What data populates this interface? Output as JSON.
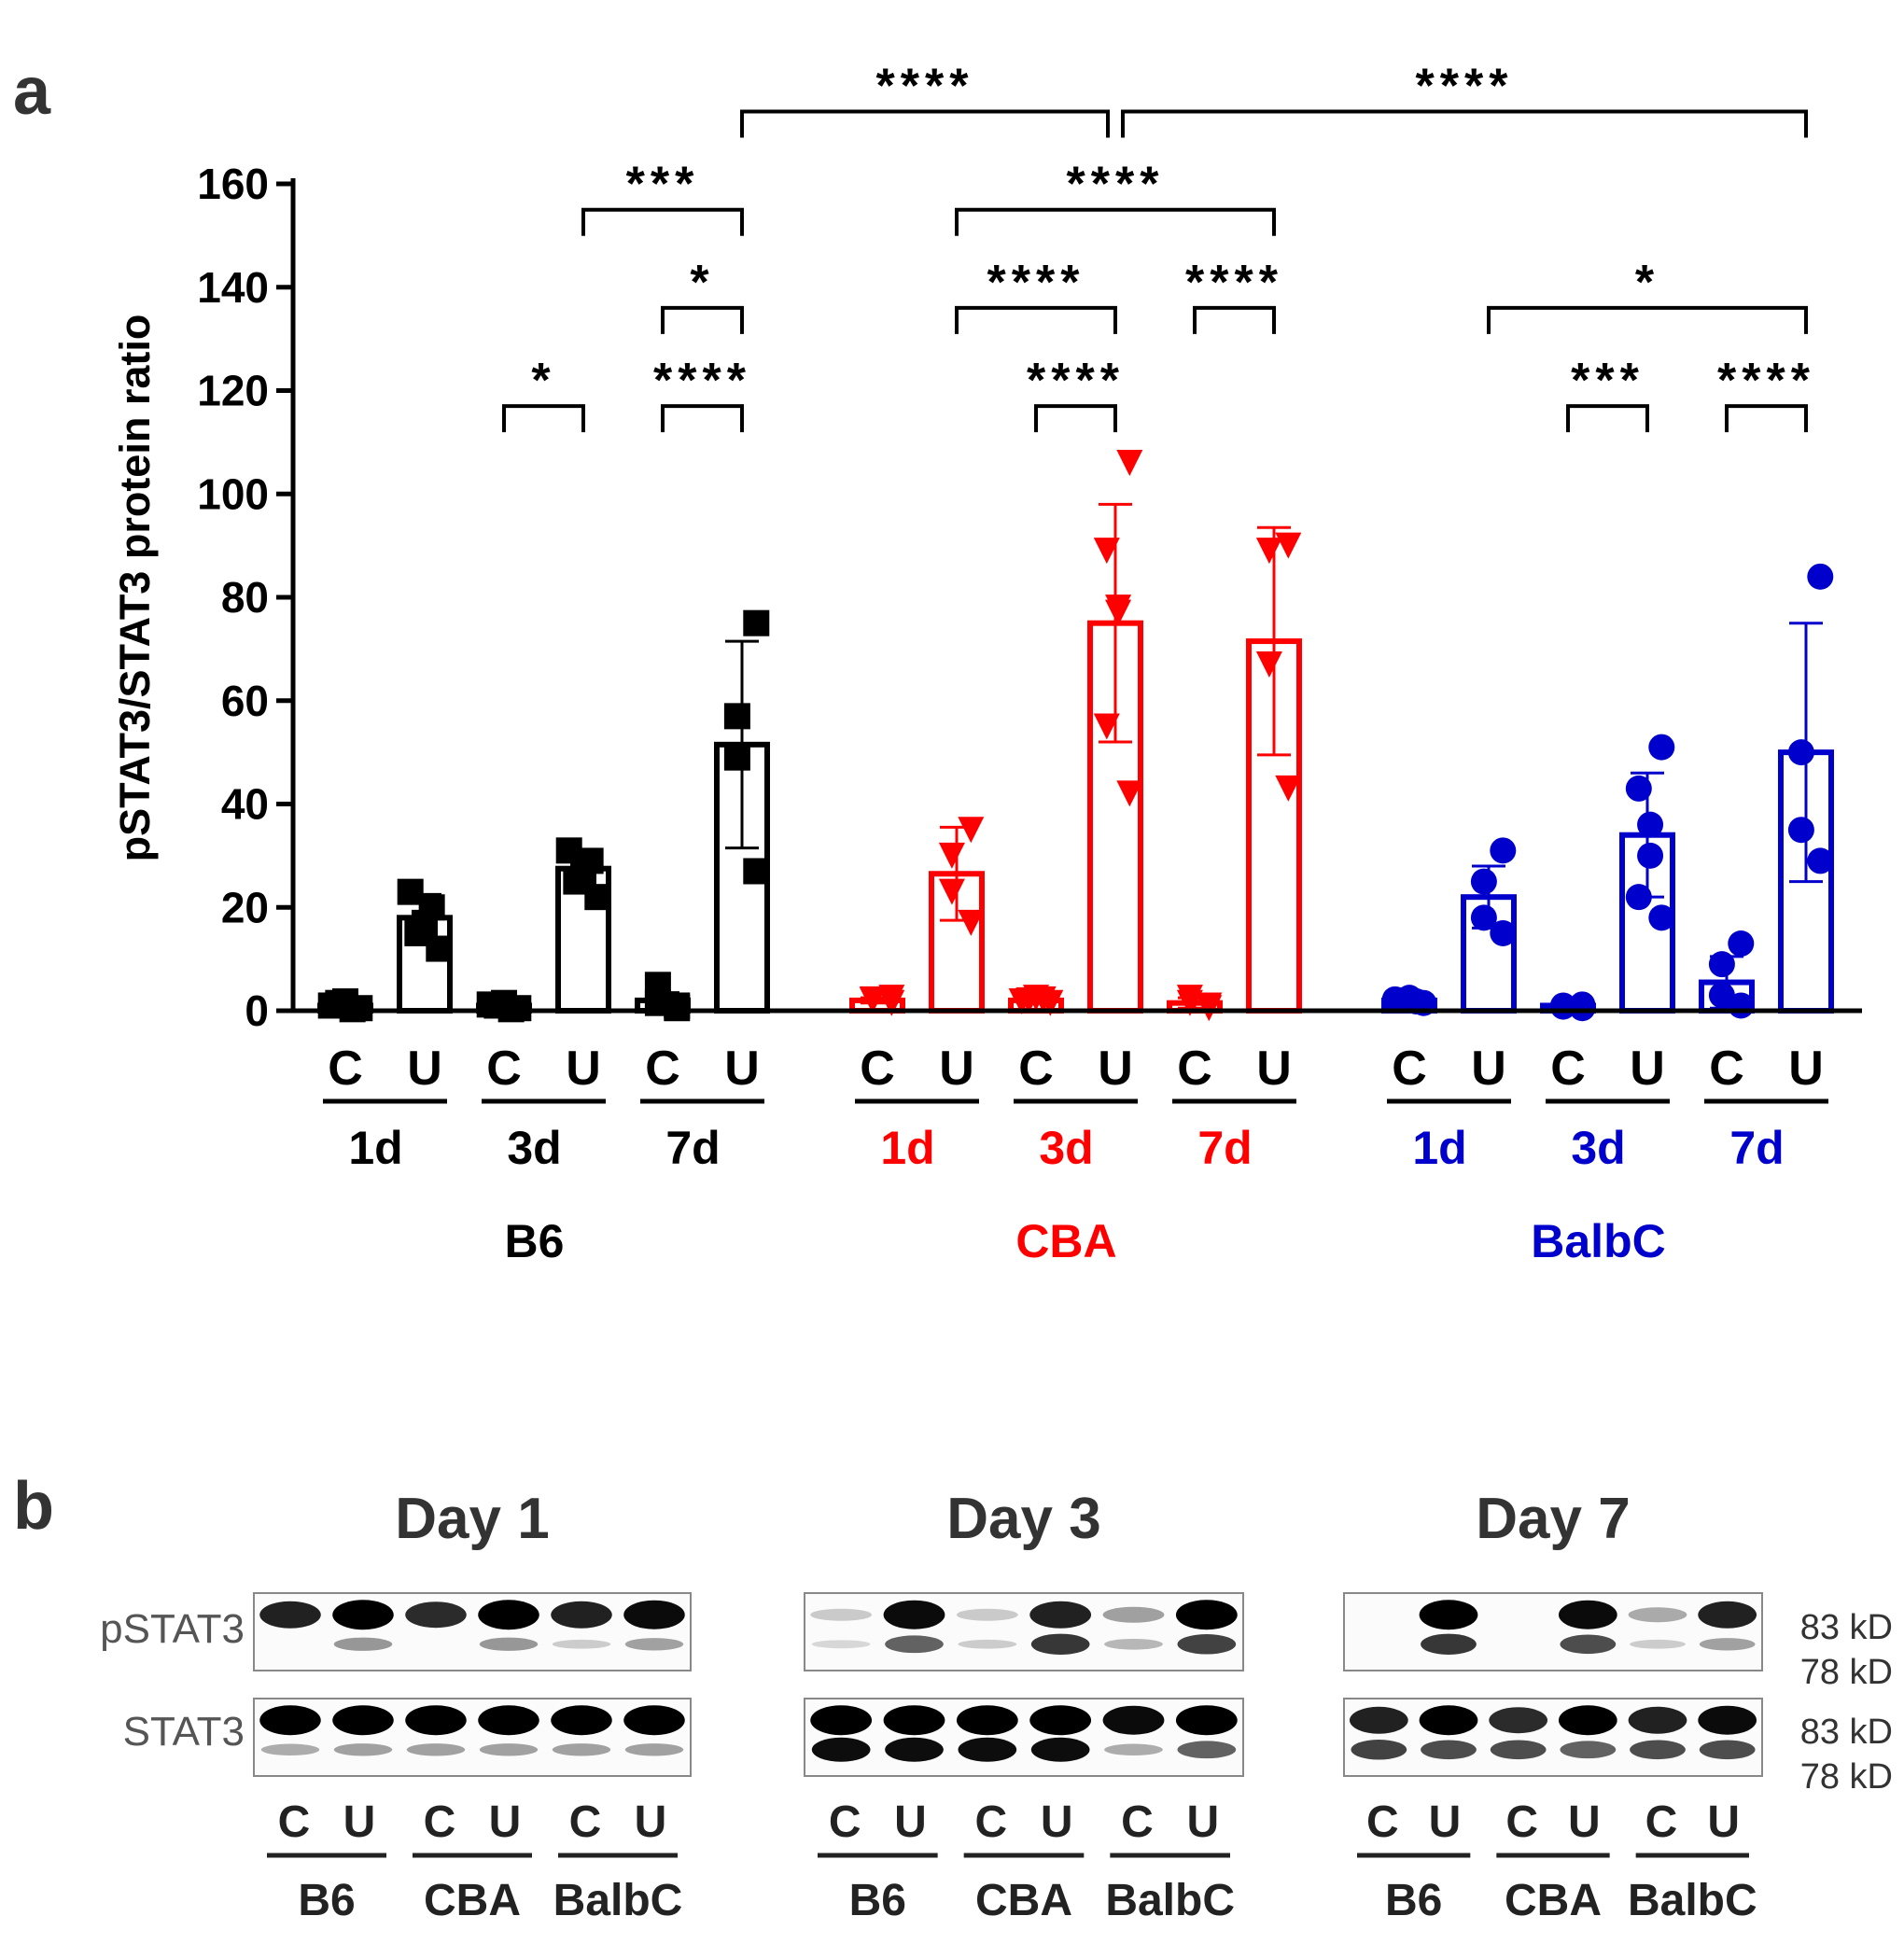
{
  "panel_a_label": "a",
  "panel_b_label": "b",
  "chart_data": {
    "type": "bar",
    "title": "",
    "xlabel": "",
    "ylabel": "pSTAT3/STAT3 protein ratio",
    "ylim": [
      0,
      160
    ],
    "yticks": [
      0,
      20,
      40,
      60,
      80,
      100,
      120,
      140,
      160
    ],
    "grid": false,
    "strains": [
      {
        "name": "B6",
        "color": "#000000",
        "marker": "square",
        "days": [
          {
            "label": "1d",
            "C": {
              "label": "C",
              "mean": 1,
              "sd": 0.8,
              "points": [
                0.5,
                1.5,
                1.8,
                0.3,
                1.0
              ]
            },
            "U": {
              "label": "U",
              "mean": 18,
              "sd": 4.5,
              "points": [
                12,
                15,
                17,
                20,
                23
              ]
            }
          },
          {
            "label": "3d",
            "C": {
              "label": "C",
              "mean": 1,
              "sd": 0.6,
              "points": [
                0.5,
                1.0,
                1.5,
                0.3,
                1.2
              ]
            },
            "U": {
              "label": "U",
              "mean": 27.5,
              "sd": 3.5,
              "points": [
                22,
                25,
                27,
                29,
                31
              ]
            }
          },
          {
            "label": "7d",
            "C": {
              "label": "C",
              "mean": 2,
              "sd": 1.5,
              "points": [
                0.5,
                1.5,
                5.0,
                1.0
              ]
            },
            "U": {
              "label": "U",
              "mean": 51.5,
              "sd": 20,
              "points": [
                27,
                49,
                57,
                75
              ]
            }
          }
        ]
      },
      {
        "name": "CBA",
        "color": "#ff0000",
        "marker": "triangle",
        "days": [
          {
            "label": "1d",
            "C": {
              "label": "C",
              "mean": 2,
              "sd": 0.5,
              "points": [
                1.5,
                2.0,
                2.2,
                2.5
              ]
            },
            "U": {
              "label": "U",
              "mean": 26.5,
              "sd": 9,
              "points": [
                17,
                23,
                30,
                35
              ]
            }
          },
          {
            "label": "3d",
            "C": {
              "label": "C",
              "mean": 2,
              "sd": 0.5,
              "points": [
                1.5,
                2.0,
                2.5,
                2.2,
                1.8
              ]
            },
            "U": {
              "label": "U",
              "mean": 75,
              "sd": 23,
              "points": [
                42,
                55,
                77,
                78,
                89,
                106
              ]
            }
          },
          {
            "label": "7d",
            "C": {
              "label": "C",
              "mean": 1.5,
              "sd": 1.0,
              "points": [
                0.5,
                1.5,
                2.5,
                1.0
              ]
            },
            "U": {
              "label": "U",
              "mean": 71.5,
              "sd": 22,
              "points": [
                43,
                67,
                89,
                90
              ]
            }
          }
        ]
      },
      {
        "name": "BalbC",
        "color": "#0000cc",
        "marker": "circle",
        "days": [
          {
            "label": "1d",
            "C": {
              "label": "C",
              "mean": 2,
              "sd": 0.6,
              "points": [
                1.5,
                2.0,
                2.5,
                1.8,
                2.2
              ]
            },
            "U": {
              "label": "U",
              "mean": 22,
              "sd": 6,
              "points": [
                15,
                18,
                25,
                31
              ]
            }
          },
          {
            "label": "3d",
            "C": {
              "label": "C",
              "mean": 1,
              "sd": 0.3,
              "points": [
                0.5,
                0.8,
                1.0,
                1.2
              ]
            },
            "U": {
              "label": "U",
              "mean": 34,
              "sd": 12,
              "points": [
                18,
                22,
                30,
                36,
                43,
                51
              ]
            }
          },
          {
            "label": "7d",
            "C": {
              "label": "C",
              "mean": 5.5,
              "sd": 5,
              "points": [
                1,
                3,
                9,
                13
              ]
            },
            "U": {
              "label": "U",
              "mean": 50,
              "sd": 25,
              "points": [
                29,
                35,
                50,
                84
              ]
            }
          }
        ]
      }
    ],
    "significance": [
      {
        "from": [
          0,
          2,
          "U"
        ],
        "to": [
          1,
          1,
          "U"
        ],
        "label": "****",
        "y": 174
      },
      {
        "from": [
          1,
          1,
          "U"
        ],
        "to": [
          2,
          2,
          "U"
        ],
        "label": "****",
        "y": 174
      },
      {
        "from": [
          0,
          1,
          "U"
        ],
        "to": [
          0,
          2,
          "U"
        ],
        "label": "***",
        "y": 155
      },
      {
        "from": [
          1,
          0,
          "U"
        ],
        "to": [
          1,
          2,
          "U"
        ],
        "label": "****",
        "y": 155
      },
      {
        "from": [
          0,
          2,
          "C"
        ],
        "to": [
          0,
          2,
          "U"
        ],
        "label": "*",
        "y": 136
      },
      {
        "from": [
          1,
          0,
          "U"
        ],
        "to": [
          1,
          1,
          "U"
        ],
        "label": "****",
        "y": 136
      },
      {
        "from": [
          1,
          2,
          "C"
        ],
        "to": [
          1,
          2,
          "U"
        ],
        "label": "****",
        "y": 136
      },
      {
        "from": [
          2,
          0,
          "U"
        ],
        "to": [
          2,
          2,
          "U"
        ],
        "label": "*",
        "y": 136
      },
      {
        "from": [
          0,
          1,
          "C"
        ],
        "to": [
          0,
          1,
          "U"
        ],
        "label": "*",
        "y": 117
      },
      {
        "from": [
          0,
          2,
          "C"
        ],
        "to": [
          0,
          2,
          "U"
        ],
        "label": "****",
        "y": 117
      },
      {
        "from": [
          1,
          1,
          "C"
        ],
        "to": [
          1,
          1,
          "U"
        ],
        "label": "****",
        "y": 117
      },
      {
        "from": [
          2,
          1,
          "C"
        ],
        "to": [
          2,
          1,
          "U"
        ],
        "label": "***",
        "y": 117
      },
      {
        "from": [
          2,
          2,
          "C"
        ],
        "to": [
          2,
          2,
          "U"
        ],
        "label": "****",
        "y": 117
      }
    ]
  },
  "western_blot": {
    "panels": [
      {
        "title": "Day 1",
        "lanes": [
          "C",
          "U",
          "C",
          "U",
          "C",
          "U"
        ],
        "groups": [
          "B6",
          "CBA",
          "BalbC"
        ],
        "pstat3_top": [
          0.85,
          1.0,
          0.8,
          1.0,
          0.85,
          0.95
        ],
        "pstat3_bottom": [
          0.0,
          0.35,
          0.0,
          0.35,
          0.1,
          0.3
        ],
        "stat3_top": [
          1.0,
          1.0,
          1.0,
          1.0,
          1.0,
          1.0
        ],
        "stat3_bottom": [
          0.25,
          0.3,
          0.3,
          0.3,
          0.3,
          0.3
        ]
      },
      {
        "title": "Day 3",
        "lanes": [
          "C",
          "U",
          "C",
          "U",
          "C",
          "U"
        ],
        "groups": [
          "B6",
          "CBA",
          "BalbC"
        ],
        "pstat3_top": [
          0.05,
          0.95,
          0.05,
          0.85,
          0.25,
          1.0
        ],
        "pstat3_bottom": [
          0.05,
          0.6,
          0.1,
          0.8,
          0.2,
          0.75
        ],
        "stat3_top": [
          1.0,
          1.0,
          1.0,
          1.0,
          0.95,
          1.0
        ],
        "stat3_bottom": [
          1.0,
          1.0,
          1.0,
          1.0,
          0.25,
          0.6
        ]
      },
      {
        "title": "Day 7",
        "lanes": [
          "C",
          "U",
          "C",
          "U",
          "C",
          "U"
        ],
        "groups": [
          "B6",
          "CBA",
          "BalbC"
        ],
        "pstat3_top": [
          0.0,
          1.0,
          0.0,
          0.95,
          0.2,
          0.85
        ],
        "pstat3_bottom": [
          0.0,
          0.8,
          0.0,
          0.7,
          0.1,
          0.3
        ],
        "stat3_top": [
          0.85,
          1.0,
          0.8,
          1.0,
          0.85,
          0.95
        ],
        "stat3_bottom": [
          0.75,
          0.7,
          0.7,
          0.6,
          0.7,
          0.7
        ]
      }
    ],
    "row_labels": [
      "pSTAT3",
      "STAT3"
    ],
    "kd_labels": [
      "83 kD",
      "78 kD"
    ]
  }
}
